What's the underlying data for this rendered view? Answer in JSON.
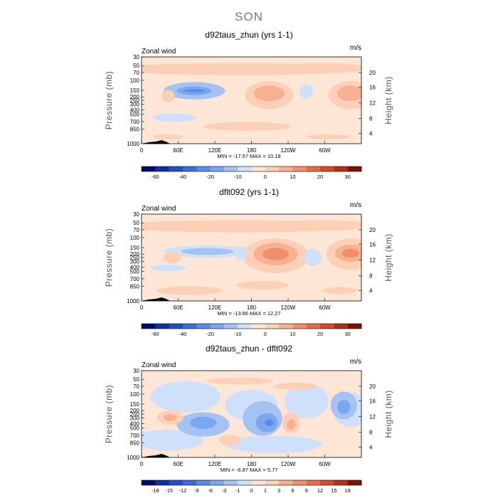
{
  "page_title": "SON",
  "colors": {
    "label_gray": "#555555",
    "levels": [
      "#000a6b",
      "#0a2fa8",
      "#1f4fd0",
      "#3d6be0",
      "#5a8be6",
      "#7aa7ee",
      "#a4c3f4",
      "#cfe0fb",
      "#fde6d6",
      "#fbd0b6",
      "#f8b190",
      "#f28f6b",
      "#ea6a43",
      "#d84a2a",
      "#b52f16",
      "#7a1408"
    ]
  },
  "chart_data": [
    {
      "type": "heatmap",
      "title": "d92taus_zhun (yrs 1-1)",
      "variable": "Zonal wind",
      "units": "m/s",
      "ylabel": "Pressure (mb)",
      "y2label": "Height (km)",
      "x_ticks": [
        "0",
        "60E",
        "120E",
        "180",
        "120W",
        "60W"
      ],
      "y_ticks": [
        "30",
        "50",
        "70",
        "100",
        "150",
        "200",
        "250",
        "300",
        "400",
        "500",
        "700",
        "850",
        "1000"
      ],
      "y2_ticks": [
        "20",
        "16",
        "12",
        "8",
        "4"
      ],
      "stats": "MIN = -17.57   MAX =  10.18",
      "colorbar_labels": [
        "-60",
        "-40",
        "-20",
        "-10",
        "0",
        "10",
        "20",
        "30"
      ],
      "min": -17.57,
      "max": 10.18
    },
    {
      "type": "heatmap",
      "title": "dflt092 (yrs 1-1)",
      "variable": "Zonal wind",
      "units": "m/s",
      "ylabel": "Pressure (mb)",
      "y2label": "Height (km)",
      "x_ticks": [
        "0",
        "60E",
        "120E",
        "180",
        "120W",
        "60W"
      ],
      "y_ticks": [
        "30",
        "50",
        "70",
        "100",
        "150",
        "200",
        "250",
        "300",
        "400",
        "500",
        "700",
        "850",
        "1000"
      ],
      "y2_ticks": [
        "20",
        "16",
        "12",
        "8",
        "4"
      ],
      "stats": "MIN = -13.66   MAX =  12.27",
      "colorbar_labels": [
        "-60",
        "-40",
        "-20",
        "-10",
        "0",
        "10",
        "20",
        "30"
      ],
      "min": -13.66,
      "max": 12.27
    },
    {
      "type": "heatmap",
      "title": "d92taus_zhun - dflt092",
      "variable": "Zonal wind",
      "units": "m/s",
      "ylabel": "Pressure (mb)",
      "y2label": "Height (km)",
      "x_ticks": [
        "0",
        "60E",
        "120E",
        "180",
        "120W",
        "60W"
      ],
      "y_ticks": [
        "30",
        "50",
        "70",
        "100",
        "150",
        "200",
        "250",
        "300",
        "400",
        "500",
        "700",
        "850",
        "1000"
      ],
      "y2_ticks": [
        "20",
        "16",
        "12",
        "8",
        "4"
      ],
      "stats": "MIN = -6.87   MAX =  5.77",
      "colorbar_labels": [
        "-18",
        "-15",
        "-12",
        "-9",
        "-6",
        "-3",
        "-1",
        "0",
        "1",
        "3",
        "6",
        "9",
        "12",
        "15",
        "18"
      ],
      "min": -6.87,
      "max": 5.77
    }
  ]
}
